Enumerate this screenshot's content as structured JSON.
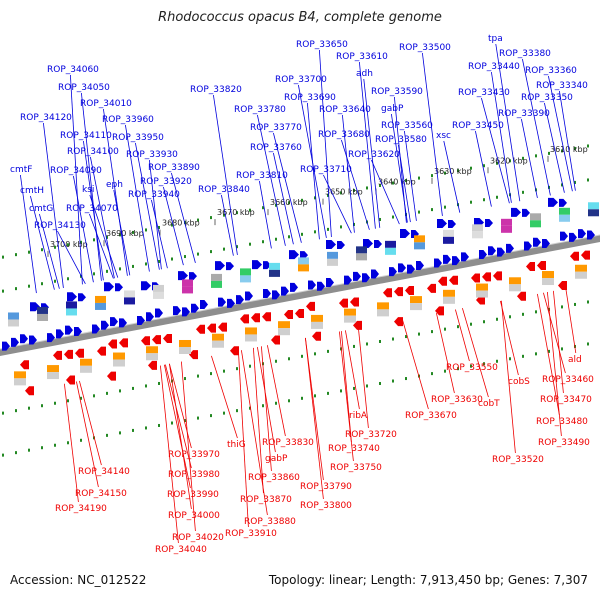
{
  "title": "Rhodococcus opacus B4, complete genome",
  "accession": "Accession: NC_012522",
  "summary": "Topology: linear; Length: 7,913,450 bp; Genes: 7,307",
  "colors": {
    "forward": "#0000dd",
    "reverse": "#ee0000",
    "backbone": "#888888",
    "tick": "#228822"
  },
  "kbp_ticks": [
    "3610 kbp",
    "3620 kbp",
    "3630 kbp",
    "3640 kbp",
    "3650 kbp",
    "3660 kbp",
    "3670 kbp",
    "3680 kbp",
    "3690 kbp",
    "3700 kbp"
  ],
  "forward_labels": [
    "ROP_33650",
    "ROP_33610",
    "ROP_33500",
    "tpa",
    "ROP_33380",
    "ROP_34060",
    "adh",
    "ROP_33440",
    "ROP_33360",
    "ROP_33700",
    "ROP_33590",
    "ROP_33340",
    "ROP_34050",
    "ROP_33820",
    "ROP_33430",
    "ROP_33690",
    "gabP",
    "ROP_33350",
    "ROP_34010",
    "ROP_33780",
    "ROP_33640",
    "ROP_33390",
    "ROP_34120",
    "ROP_33960",
    "ROP_33770",
    "ROP_33560",
    "ROP_33450",
    "ROP_34110",
    "ROP_33950",
    "ROP_33680",
    "ROP_33580",
    "xsc",
    "ROP_33760",
    "ROP_34100",
    "ROP_33620",
    "ROP_33930",
    "cmtF",
    "ROP_34090",
    "ROP_33890",
    "ROP_33710",
    "ROP_33810",
    "eph",
    "ROP_33920",
    "cmtH",
    "ksi",
    "ROP_33840",
    "ROP_33940",
    "cmtG",
    "ROP_34070",
    "ROP_34130"
  ],
  "reverse_labels": [
    "ald",
    "ROP_33550",
    "cobS",
    "ROP_33460",
    "cobT",
    "ROP_33470",
    "ribA",
    "ROP_33630",
    "ROP_33480",
    "ROP_33670",
    "ROP_33720",
    "ROP_33490",
    "ROP_33830",
    "ROP_33970",
    "thiG",
    "ROP_33740",
    "ROP_33520",
    "gabP",
    "ROP_34140",
    "ROP_33980",
    "ROP_33860",
    "ROP_33750",
    "ROP_33790",
    "ROP_34150",
    "ROP_33990",
    "ROP_33870",
    "ROP_34190",
    "ROP_33800",
    "ROP_34000",
    "ROP_33880",
    "ROP_33910",
    "ROP_34020",
    "ROP_34040"
  ]
}
